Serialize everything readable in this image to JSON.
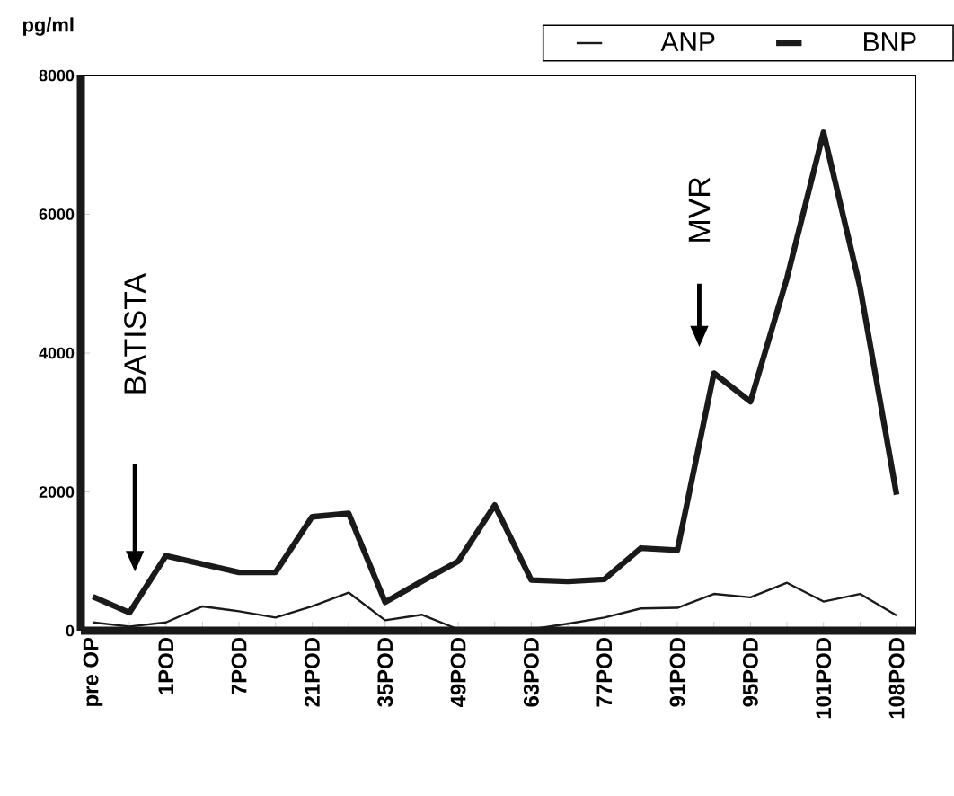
{
  "chart_data": {
    "type": "line",
    "ylabel": "pg/ml",
    "categories": [
      "pre OP",
      null,
      "1POD",
      null,
      "7POD",
      null,
      "21POD",
      null,
      "35POD",
      null,
      "49POD",
      null,
      "63POD",
      null,
      "77POD",
      null,
      "91POD",
      null,
      "95POD",
      null,
      "101POD",
      null,
      "108POD"
    ],
    "series": [
      {
        "name": "ANP",
        "color": "#1a1a1a",
        "values": [
          120,
          60,
          120,
          350,
          280,
          190,
          350,
          550,
          150,
          230,
          20,
          0,
          20,
          100,
          190,
          320,
          330,
          530,
          480,
          690,
          420,
          530,
          220
        ]
      },
      {
        "name": "BNP",
        "color": "#1a1a1a",
        "values": [
          490,
          260,
          1080,
          960,
          840,
          840,
          1640,
          1690,
          410,
          710,
          1000,
          1810,
          730,
          710,
          740,
          1190,
          1160,
          3710,
          3300,
          5080,
          7180,
          4950,
          1960
        ]
      }
    ],
    "ylim": [
      0,
      8000
    ],
    "yticks": [
      0,
      2000,
      4000,
      6000,
      8000
    ],
    "annotations": [
      "BATISTA",
      "MVR"
    ],
    "legend": "top right",
    "grid": false,
    "marker": "none",
    "line_style": "solid"
  }
}
